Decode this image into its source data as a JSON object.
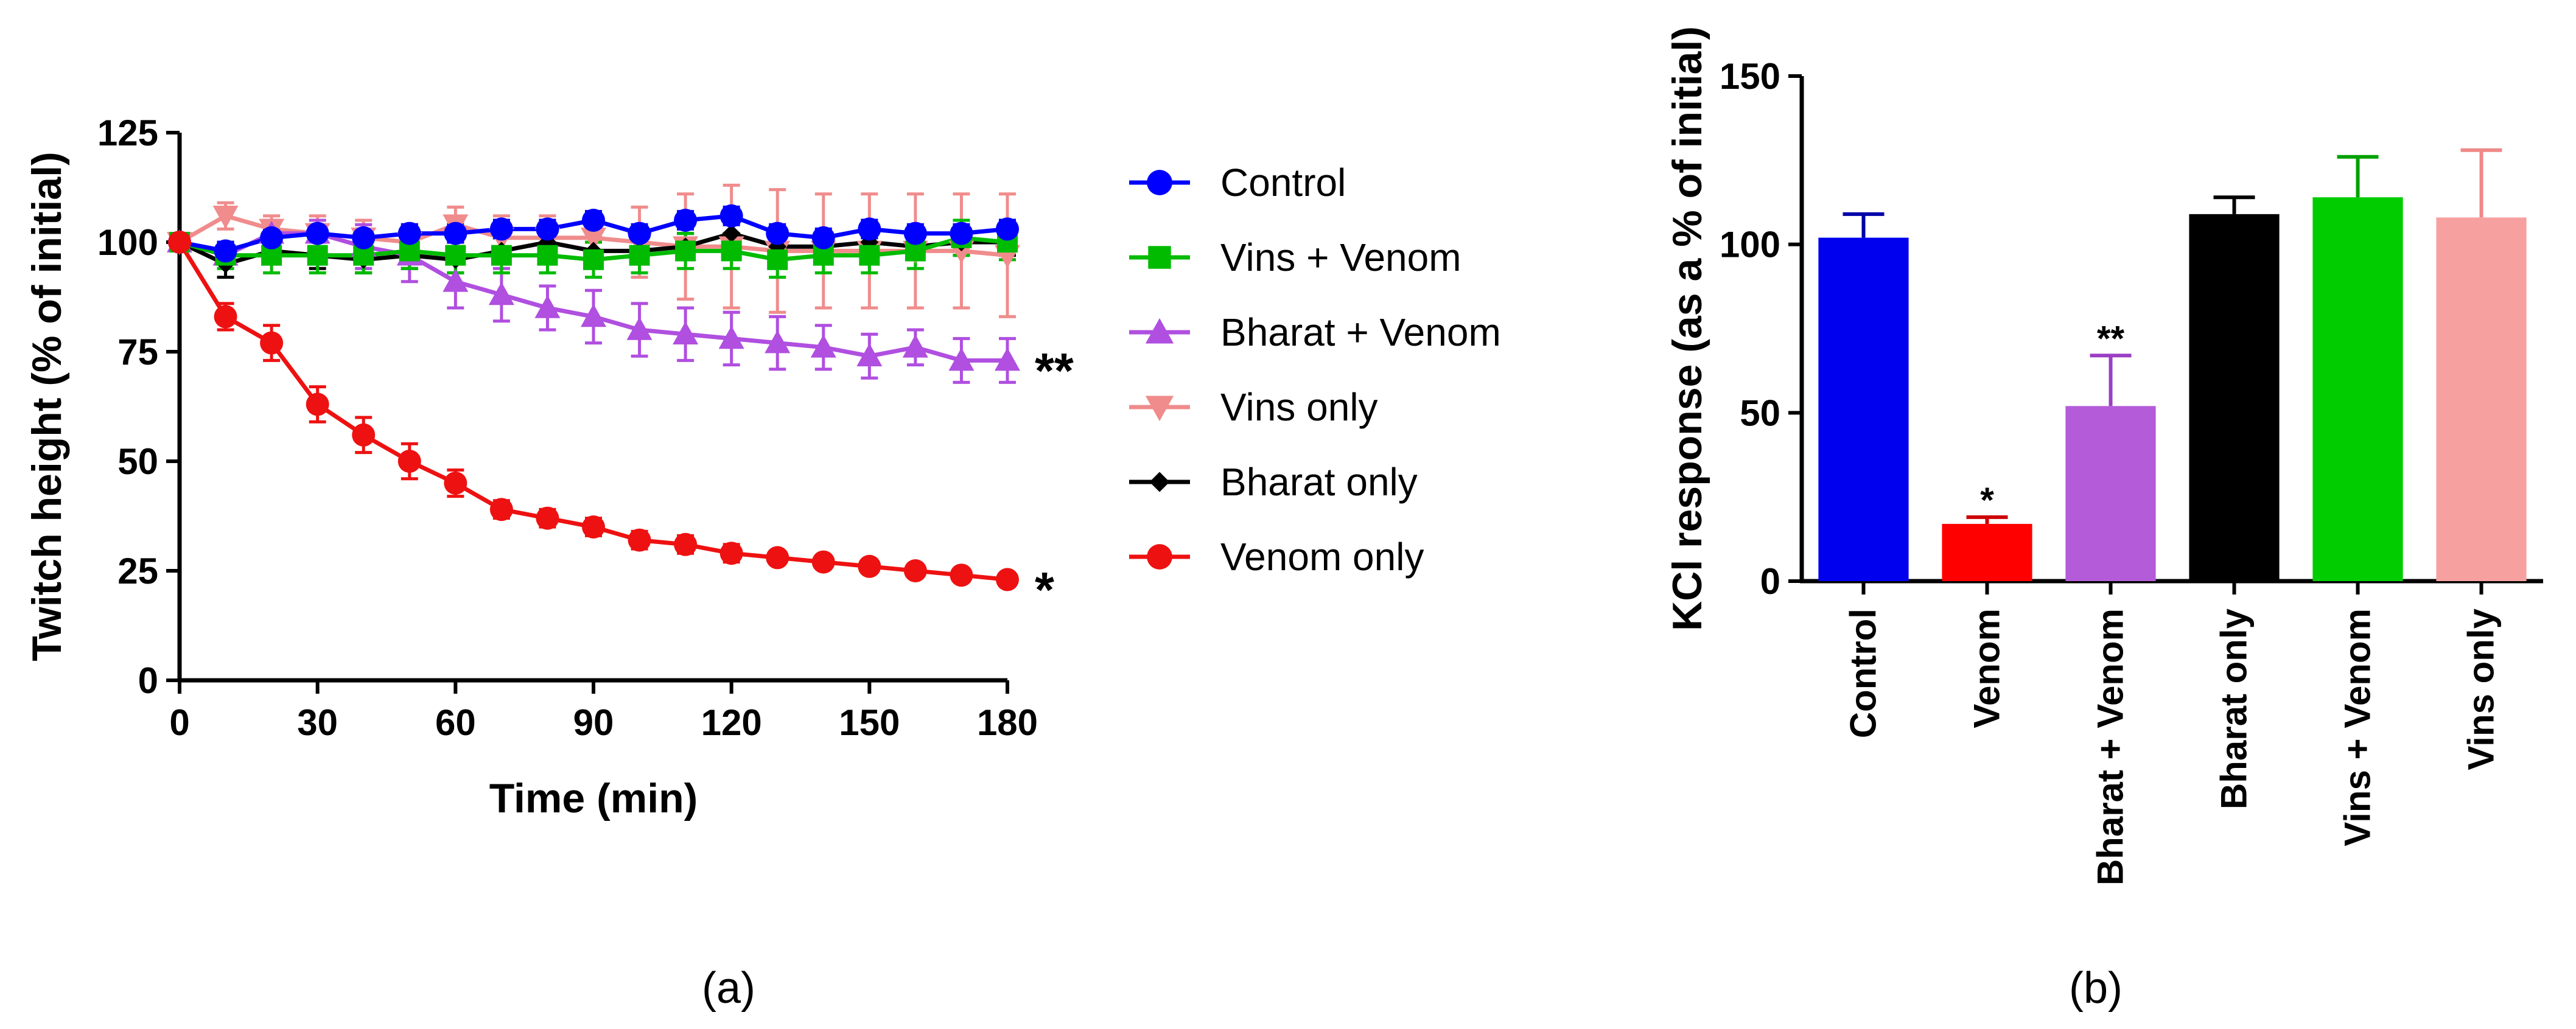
{
  "panel_labels": {
    "a": "(a)",
    "b": "(b)"
  },
  "chart_data": [
    {
      "type": "line",
      "xlabel": "Time (min)",
      "ylabel": "Twitch height (% of initial)",
      "xlim": [
        0,
        180
      ],
      "ylim": [
        0,
        125
      ],
      "xticks": [
        "0",
        "30",
        "60",
        "90",
        "120",
        "150",
        "180"
      ],
      "yticks": [
        "0",
        "25",
        "50",
        "75",
        "100",
        "125"
      ],
      "legend_position": "right",
      "x": [
        0,
        10,
        20,
        30,
        40,
        50,
        60,
        70,
        80,
        90,
        100,
        110,
        120,
        130,
        140,
        150,
        160,
        170,
        180
      ],
      "series": [
        {
          "name": "Control",
          "color": "#0000ff",
          "marker": "circle",
          "values": [
            100,
            98,
            101,
            102,
            101,
            102,
            102,
            103,
            103,
            105,
            102,
            105,
            106,
            102,
            101,
            103,
            102,
            102,
            103
          ],
          "errors": [
            0,
            2,
            2,
            2,
            2,
            2,
            2,
            2,
            2,
            2,
            2,
            2,
            2,
            2,
            2,
            2,
            2,
            2,
            2
          ]
        },
        {
          "name": "Vins + Venom",
          "color": "#00bb00",
          "marker": "square",
          "values": [
            100,
            97,
            97,
            97,
            97,
            98,
            97,
            97,
            97,
            96,
            97,
            98,
            98,
            96,
            97,
            97,
            98,
            101,
            100
          ],
          "errors": [
            0,
            3,
            4,
            4,
            4,
            4,
            4,
            4,
            4,
            4,
            4,
            4,
            4,
            4,
            4,
            4,
            4,
            4,
            4
          ]
        },
        {
          "name": "Bharat + Venom",
          "color": "#b04fe0",
          "marker": "triangle-up",
          "values": [
            100,
            97,
            102,
            102,
            99,
            97,
            91,
            88,
            85,
            83,
            80,
            79,
            78,
            77,
            76,
            74,
            76,
            73,
            73
          ],
          "errors": [
            0,
            3,
            3,
            3,
            5,
            6,
            6,
            6,
            5,
            6,
            6,
            6,
            6,
            6,
            5,
            5,
            4,
            5,
            5
          ]
        },
        {
          "name": "Vins only",
          "color": "#f08c8c",
          "marker": "triangle-down",
          "values": [
            100,
            106,
            103,
            102,
            101,
            100,
            104,
            101,
            101,
            101,
            100,
            99,
            99,
            98,
            98,
            98,
            98,
            98,
            97
          ],
          "errors": [
            0,
            3,
            3,
            4,
            4,
            4,
            4,
            5,
            5,
            6,
            8,
            12,
            14,
            14,
            13,
            13,
            13,
            13,
            14
          ]
        },
        {
          "name": "Bharat only",
          "color": "#000000",
          "marker": "diamond",
          "values": [
            100,
            95,
            98,
            97,
            96,
            97,
            96,
            98,
            100,
            98,
            98,
            99,
            102,
            99,
            99,
            100,
            99,
            100,
            100
          ],
          "errors": [
            0,
            3,
            3,
            3,
            3,
            3,
            3,
            3,
            3,
            3,
            3,
            3,
            3,
            3,
            3,
            3,
            3,
            3,
            3
          ]
        },
        {
          "name": "Venom only",
          "color": "#ee1111",
          "marker": "circle",
          "values": [
            100,
            83,
            77,
            63,
            56,
            50,
            45,
            39,
            37,
            35,
            32,
            31,
            29,
            28,
            27,
            26,
            25,
            24,
            23
          ],
          "errors": [
            0,
            3,
            4,
            4,
            4,
            4,
            3,
            2,
            2,
            2,
            2,
            2,
            2,
            1,
            1,
            1,
            1,
            1,
            1
          ]
        }
      ],
      "annotations": [
        {
          "text": "**",
          "series": "Bharat + Venom"
        },
        {
          "text": "*",
          "series": "Venom only"
        }
      ]
    },
    {
      "type": "bar",
      "ylabel": "KCl response (as a % of initial)",
      "ylim": [
        0,
        150
      ],
      "yticks": [
        "0",
        "50",
        "100",
        "150"
      ],
      "categories": [
        "Control",
        "Venom",
        "Bharat + Venom",
        "Bharat only",
        "Vins + Venom",
        "Vins only"
      ],
      "values": [
        102,
        17,
        52,
        109,
        114,
        108
      ],
      "errors": [
        7,
        2,
        15,
        5,
        12,
        20
      ],
      "colors": [
        "#0000ee",
        "#ff0000",
        "#b45bd9",
        "#000000",
        "#00cc00",
        "#f7a0a0"
      ],
      "error_colors": [
        "#0000aa",
        "#cc0000",
        "#9a3fc4",
        "#000000",
        "#00a000",
        "#f08888"
      ],
      "annotations": [
        "",
        "*",
        "**",
        "",
        "",
        ""
      ]
    }
  ]
}
